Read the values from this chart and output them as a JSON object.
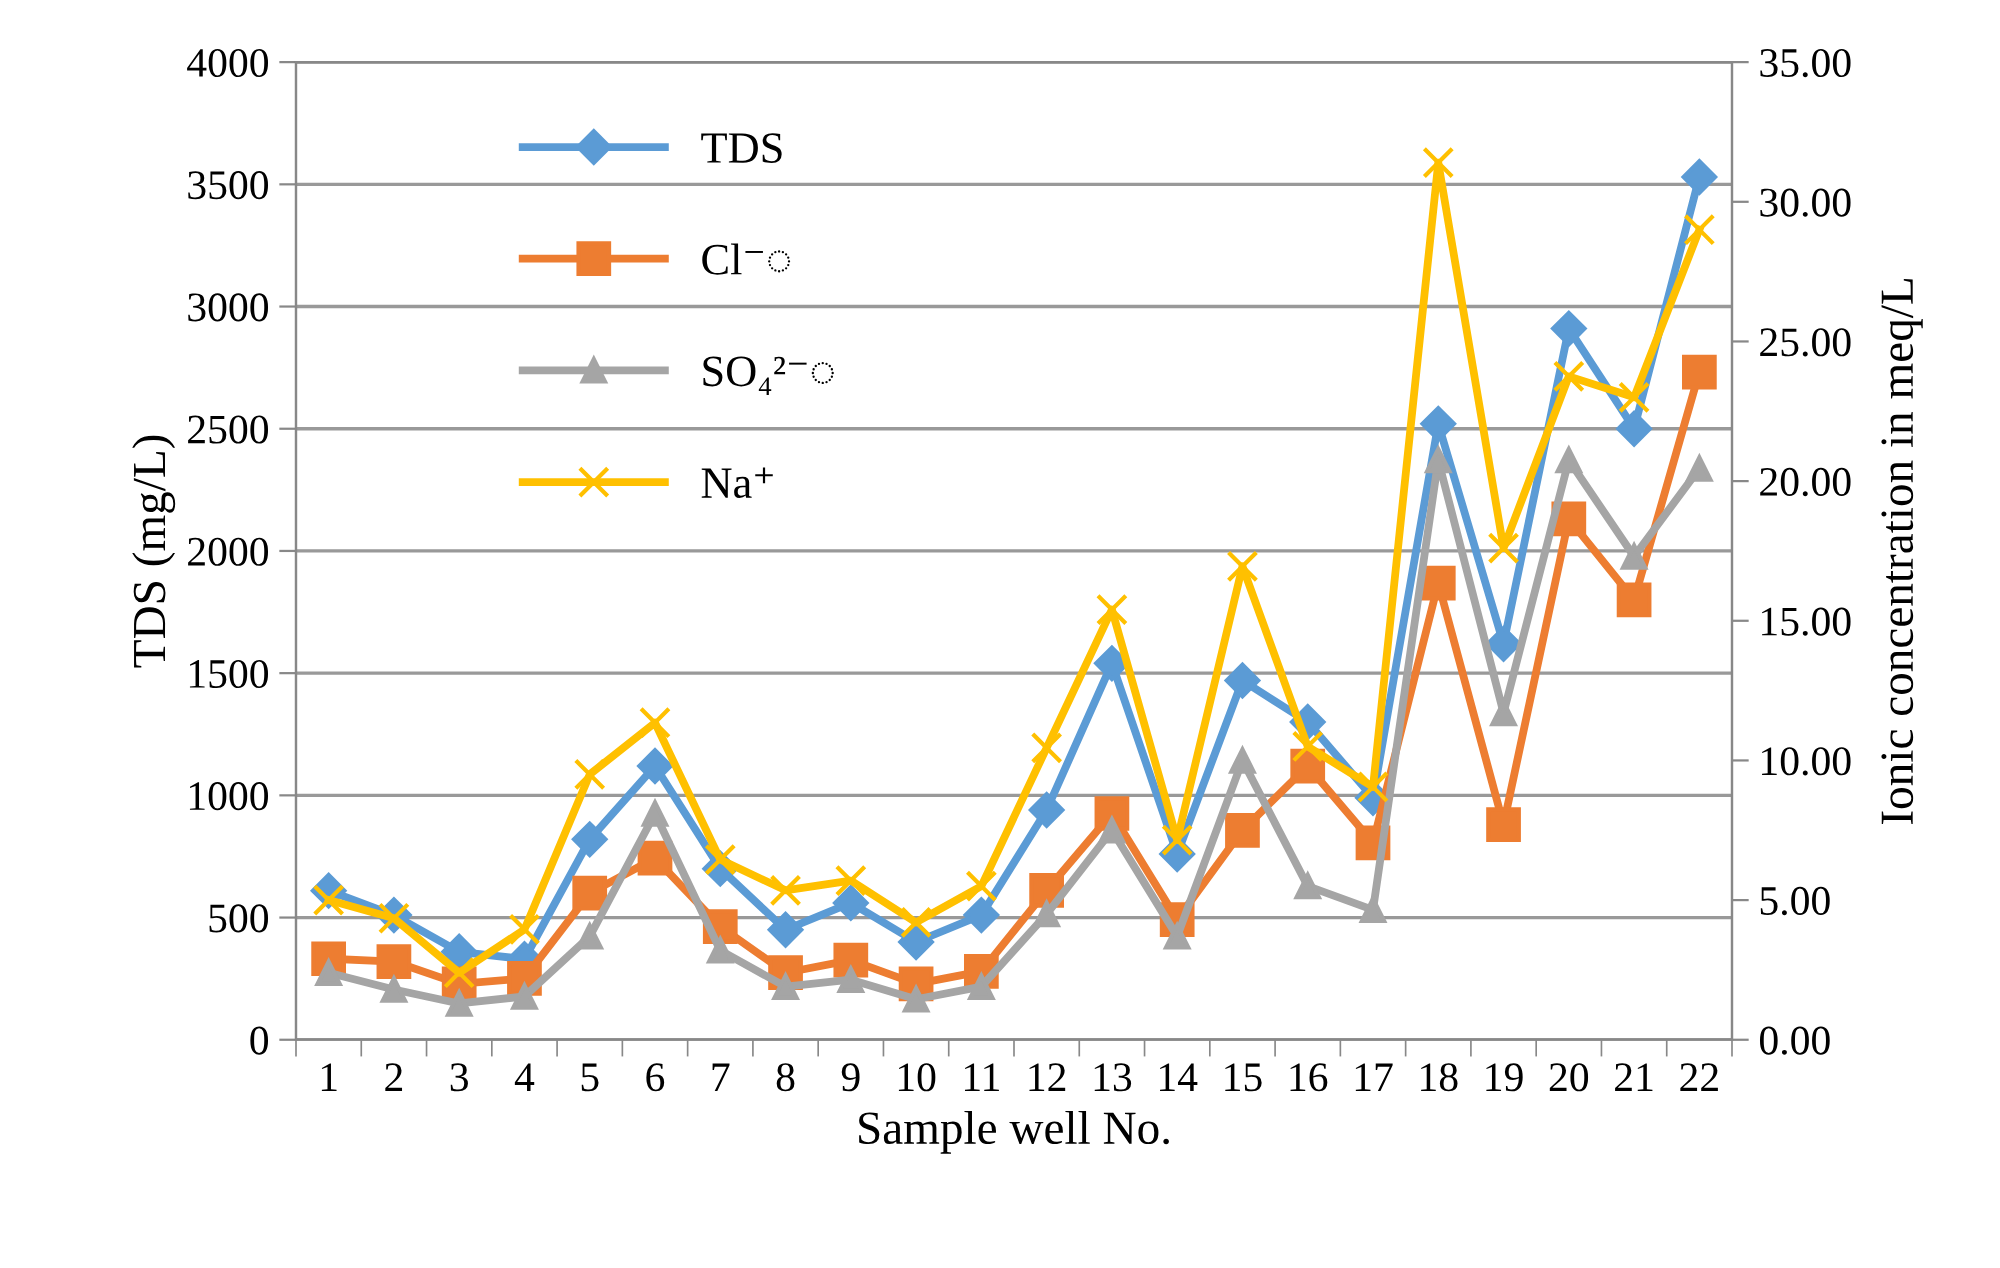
{
  "chart_data": {
    "type": "line",
    "xlabel": "Sample well No.",
    "ylabel": "TDS (mg/L)",
    "y2label": "Ionic concentration in meq/L",
    "categories": [
      "1",
      "2",
      "3",
      "4",
      "5",
      "6",
      "7",
      "8",
      "9",
      "10",
      "11",
      "12",
      "13",
      "14",
      "15",
      "16",
      "17",
      "18",
      "19",
      "20",
      "21",
      "22"
    ],
    "ylim": [
      0,
      4000
    ],
    "yticks": [
      0,
      500,
      1000,
      1500,
      2000,
      2500,
      3000,
      3500,
      4000
    ],
    "y2lim": [
      0,
      35
    ],
    "y2ticks": [
      {
        "value": 0,
        "label": "0.00"
      },
      {
        "value": 5,
        "label": "5.00"
      },
      {
        "value": 10,
        "label": "10.00"
      },
      {
        "value": 15,
        "label": "15.00"
      },
      {
        "value": 20,
        "label": "20.00"
      },
      {
        "value": 25,
        "label": "25.00"
      },
      {
        "value": 30,
        "label": "30.00"
      },
      {
        "value": 35,
        "label": "35.00"
      }
    ],
    "grid": "y",
    "legend": "top left",
    "series": [
      {
        "name": "TDS",
        "color": "#5b9bd5",
        "marker": "diamond",
        "values": [
          610,
          510,
          360,
          330,
          820,
          1120,
          700,
          450,
          560,
          400,
          510,
          940,
          1540,
          760,
          1470,
          1300,
          990,
          2520,
          1620,
          2910,
          2500,
          3530
        ]
      },
      {
        "name": "Cl⁻◌",
        "color": "#ed7d31",
        "marker": "square",
        "axis": "y2",
        "values": [
          2.9,
          2.8,
          2.0,
          2.2,
          5.25,
          6.5,
          4.05,
          2.4,
          2.85,
          2.0,
          2.45,
          5.35,
          8.1,
          4.3,
          7.5,
          9.8,
          7.05,
          16.35,
          7.7,
          18.65,
          15.75,
          23.9
        ]
      },
      {
        "name": "SO₄²⁻◌",
        "color": "#a5a5a5",
        "marker": "triangle",
        "axis": "y2",
        "values": [
          2.4,
          1.8,
          1.3,
          1.55,
          3.7,
          8.1,
          3.2,
          1.9,
          2.15,
          1.45,
          1.9,
          4.5,
          7.5,
          3.7,
          10.0,
          5.5,
          4.65,
          20.75,
          11.7,
          20.75,
          17.3,
          20.45
        ]
      },
      {
        "name": "Na⁺",
        "color": "#ffc000",
        "marker": "cross",
        "axis": "y2",
        "values": [
          5.0,
          4.35,
          2.4,
          3.95,
          9.5,
          11.35,
          6.45,
          5.35,
          5.7,
          4.2,
          5.5,
          10.45,
          15.4,
          7.15,
          16.95,
          10.5,
          9.05,
          31.4,
          17.6,
          23.75,
          23.0,
          29.0
        ]
      }
    ]
  }
}
